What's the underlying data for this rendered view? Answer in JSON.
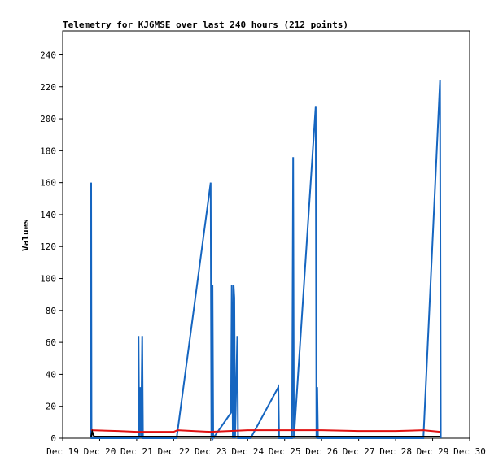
{
  "chart_data": {
    "type": "line",
    "title": "Telemetry for KJ6MSE over last 240 hours (212 points)",
    "y_label": "Values",
    "xlim": [
      19,
      30
    ],
    "xticks": [
      {
        "value": 19,
        "label": "Dec 19"
      },
      {
        "value": 20,
        "label": "Dec 20"
      },
      {
        "value": 21,
        "label": "Dec 21"
      },
      {
        "value": 22,
        "label": "Dec 22"
      },
      {
        "value": 23,
        "label": "Dec 23"
      },
      {
        "value": 24,
        "label": "Dec 24"
      },
      {
        "value": 25,
        "label": "Dec 25"
      },
      {
        "value": 26,
        "label": "Dec 26"
      },
      {
        "value": 27,
        "label": "Dec 27"
      },
      {
        "value": 28,
        "label": "Dec 28"
      },
      {
        "value": 29,
        "label": "Dec 29"
      },
      {
        "value": 30,
        "label": "Dec 30"
      }
    ],
    "ylim": [
      0,
      255
    ],
    "yticks": [
      0,
      20,
      40,
      60,
      80,
      100,
      120,
      140,
      160,
      180,
      200,
      220,
      240
    ],
    "series": [
      {
        "color": "#1565c0",
        "x": [
          19.77,
          19.77,
          19.78,
          21.05,
          21.05,
          21.07,
          21.1,
          21.12,
          21.15,
          21.17,
          22.08,
          23.0,
          23.02,
          23.05,
          23.07,
          23.55,
          23.57,
          23.6,
          23.62,
          23.64,
          23.66,
          23.72,
          23.74,
          24.08,
          24.83,
          24.85,
          25.2,
          25.23,
          25.25,
          25.84,
          25.86,
          25.88,
          25.9,
          28.75,
          29.2,
          29.22
        ],
        "values": [
          0,
          160,
          0,
          0,
          64,
          0,
          32,
          0,
          64,
          0,
          0,
          160,
          0,
          96,
          0,
          16,
          96,
          0,
          96,
          88,
          0,
          64,
          0,
          0,
          32,
          0,
          0,
          176,
          0,
          208,
          0,
          32,
          0,
          0,
          224,
          0
        ]
      },
      {
        "color": "#e01010",
        "x": [
          19.77,
          20.5,
          21,
          22,
          22.1,
          23,
          24,
          25,
          26,
          27,
          28,
          28.75,
          29.2
        ],
        "values": [
          5,
          4.5,
          4,
          4,
          5,
          4,
          5,
          5,
          5,
          4.5,
          4.5,
          5,
          4
        ]
      },
      {
        "color": "#000000",
        "x": [
          19.77,
          19.8,
          19.85,
          29.2
        ],
        "values": [
          1,
          4,
          1,
          1
        ]
      }
    ]
  }
}
